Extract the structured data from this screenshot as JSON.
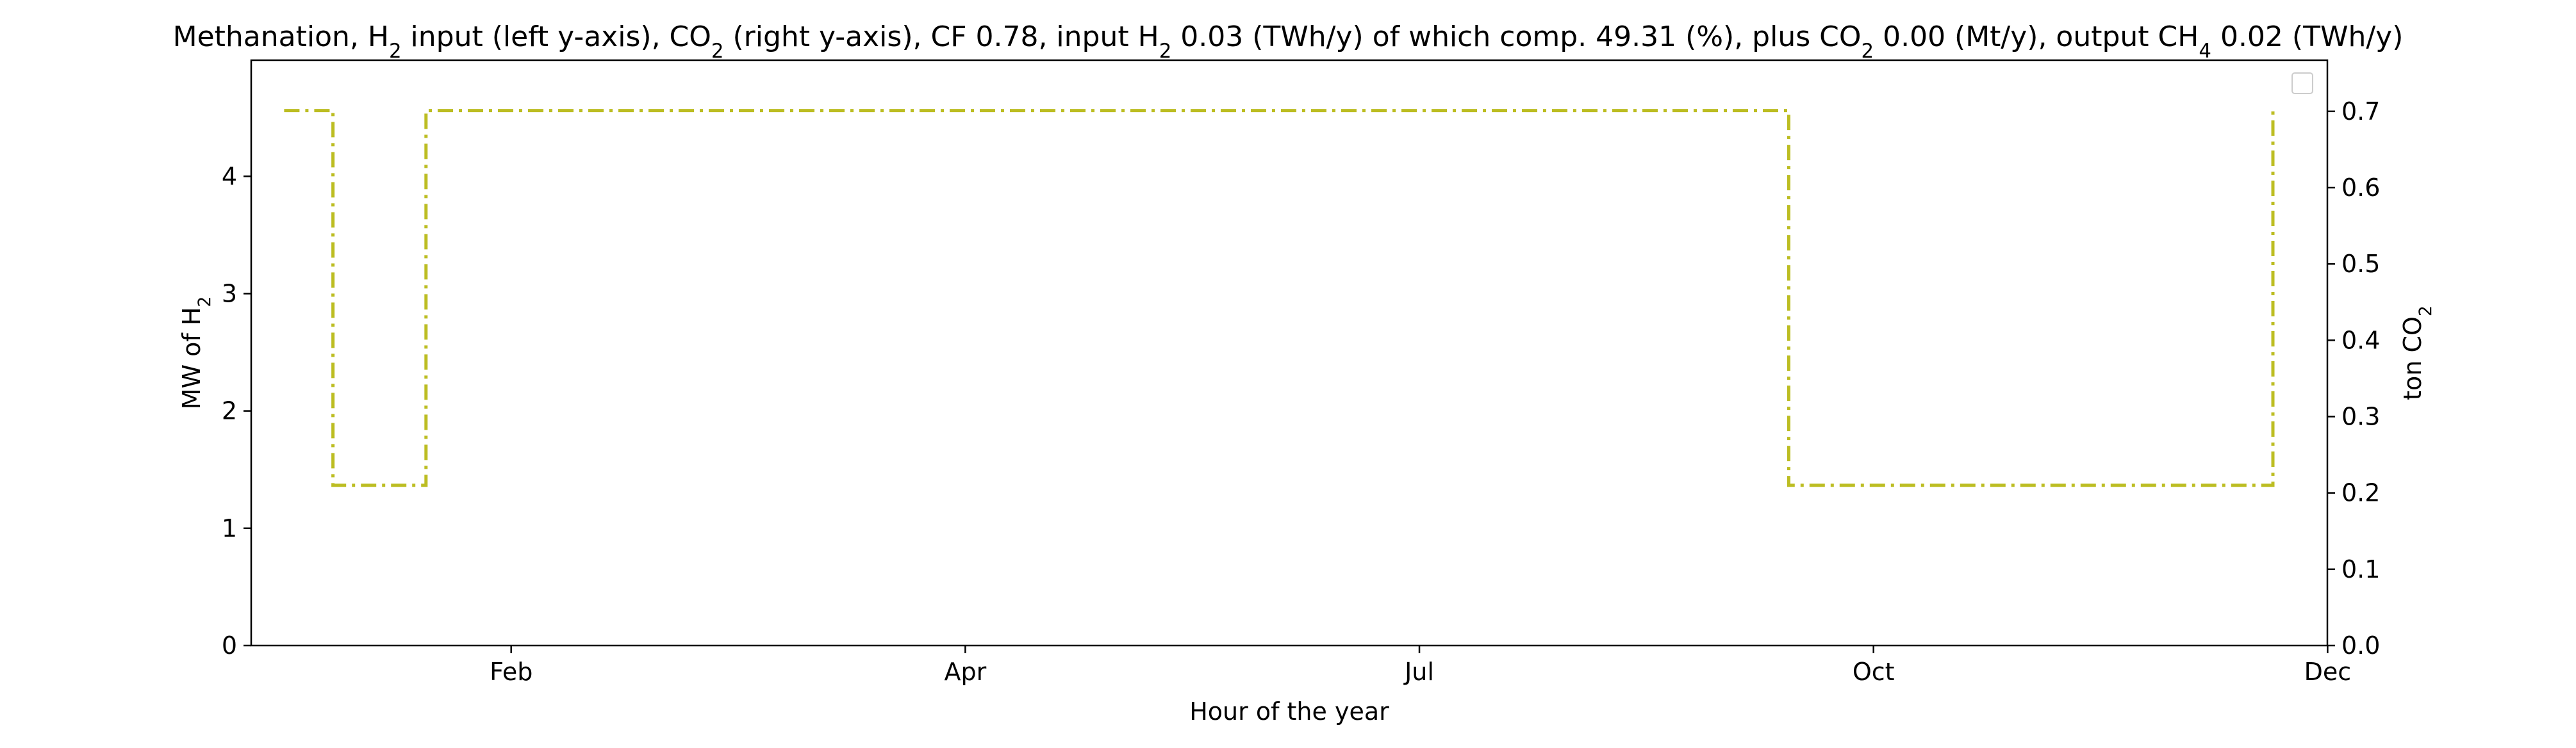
{
  "chart_data": {
    "type": "line",
    "title_parts": [
      {
        "text": "Methanation, H"
      },
      {
        "text": "2",
        "sub": true
      },
      {
        "text": " input (left y-axis), CO"
      },
      {
        "text": "2",
        "sub": true
      },
      {
        "text": " (right y-axis), CF 0.78, input H"
      },
      {
        "text": "2",
        "sub": true
      },
      {
        "text": " 0.03 (TWh/y) of which comp. 49.31 (%), plus CO"
      },
      {
        "text": "2",
        "sub": true
      },
      {
        "text": " 0.00 (Mt/y), output CH"
      },
      {
        "text": "4",
        "sub": true
      },
      {
        "text": " 0.02 (TWh/y)"
      }
    ],
    "xlabel": "Hour of the year",
    "ylabel_left_parts": [
      {
        "text": "MW of H"
      },
      {
        "text": "2",
        "sub": true
      }
    ],
    "ylabel_right_parts": [
      {
        "text": "ton CO"
      },
      {
        "text": "2",
        "sub": true
      }
    ],
    "x_ticks": [
      {
        "label": "Feb",
        "hour": 1000
      },
      {
        "label": "Apr",
        "hour": 3000
      },
      {
        "label": "Jul",
        "hour": 5000
      },
      {
        "label": "Oct",
        "hour": 7000
      },
      {
        "label": "Dec",
        "hour": 9000
      }
    ],
    "xlim": [
      -145,
      8999
    ],
    "ylim_left": [
      0,
      4.99
    ],
    "ylim_right": [
      0,
      0.767
    ],
    "y_ticks_left": [
      "0",
      "1",
      "2",
      "3",
      "4"
    ],
    "y_ticks_right": [
      "0.0",
      "0.1",
      "0.2",
      "0.3",
      "0.4",
      "0.5",
      "0.6",
      "0.7"
    ],
    "series": [
      {
        "axis": "right",
        "color": "#bcbd22",
        "style": "dash-dot",
        "step": true,
        "x": [
          0,
          215,
          215,
          625,
          625,
          6627,
          6627,
          8759,
          8759
        ],
        "y": [
          0.701,
          0.701,
          0.21,
          0.21,
          0.701,
          0.701,
          0.21,
          0.21,
          0.701
        ]
      }
    ],
    "legend": {
      "placement": "top-right",
      "entries": []
    },
    "grid": false
  }
}
